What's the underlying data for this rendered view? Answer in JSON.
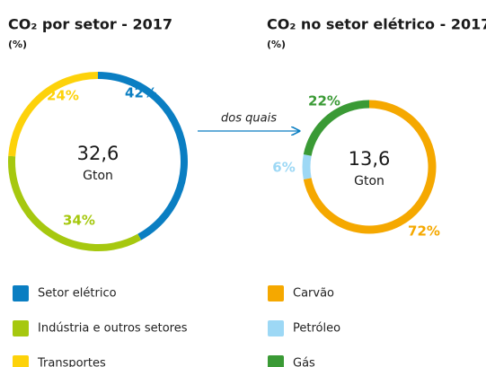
{
  "chart_data": [
    {
      "type": "pie",
      "title": "CO₂ por setor - 2017",
      "subtitle": "(%)",
      "categories": [
        "Setor elétrico",
        "Indústria e outros setores",
        "Transportes"
      ],
      "values": [
        42,
        34,
        24
      ],
      "value_labels": [
        "42%",
        "34%",
        "24%"
      ],
      "colors": [
        "#0a7ec2",
        "#a6c80f",
        "#fdd20a"
      ],
      "total": {
        "value": 32.6,
        "label": "32,6"
      },
      "unit": "Gton",
      "annotation": "dos quais"
    },
    {
      "type": "pie",
      "title": "CO₂ no setor elétrico - 2017",
      "subtitle": "(%)",
      "categories": [
        "Carvão",
        "Petróleo",
        "Gás"
      ],
      "values": [
        72,
        6,
        22
      ],
      "value_labels": [
        "72%",
        "6%",
        "22%"
      ],
      "colors": [
        "#f5a800",
        "#9dd8f5",
        "#3a9a35"
      ],
      "total": {
        "value": 13.6,
        "label": "13,6"
      },
      "unit": "Gton"
    }
  ]
}
